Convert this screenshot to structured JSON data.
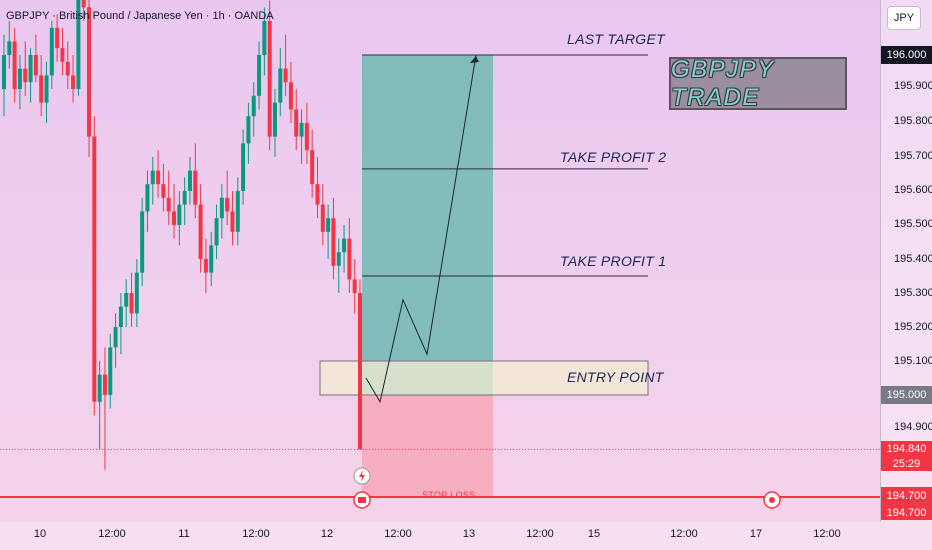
{
  "header": {
    "title": "GBPJPY · British Pound / Japanese Yen · 1h · OANDA"
  },
  "price_axis": {
    "currency": "JPY",
    "ticks": [
      "195.900",
      "195.800",
      "195.700",
      "195.600",
      "195.500",
      "195.400",
      "195.300",
      "195.200",
      "195.100",
      "194.900"
    ],
    "tags": {
      "last_target": "196.000",
      "entry": "195.000",
      "current": "194.840",
      "countdown": "25:29",
      "stop_loss": "194.700",
      "stop_loss_2": "194.700"
    }
  },
  "time_axis": {
    "labels": [
      "10",
      "12:00",
      "11",
      "12:00",
      "12",
      "12:00",
      "13",
      "12:00",
      "15",
      "12:00",
      "17",
      "12:00"
    ]
  },
  "annotations": {
    "last_target": "LAST TARGET",
    "take_profit_2": "TAKE PROFIT 2",
    "take_profit_1": "TAKE PROFIT 1",
    "entry_point": "ENTRY POINT",
    "stop_loss": "STOP LOSS",
    "trade_box": "GBPJPY TRADE"
  },
  "colors": {
    "bull": "#089981",
    "bear": "#f23645",
    "target_zone": "#6fb9b3",
    "stop_zone": "#f7a8b8",
    "entry_zone": "#f3ecd2",
    "tag_dark": "#131722",
    "tag_grey": "#787b86"
  },
  "chart_data": {
    "type": "candlestick",
    "title": "GBPJPY · British Pound / Japanese Yen · 1h · OANDA",
    "ylim": [
      194.6,
      196.2
    ],
    "levels": {
      "last_target": 196.0,
      "take_profit_2": 195.665,
      "take_profit_1": 195.35,
      "entry_zone_top": 195.1,
      "entry": 195.0,
      "stop_loss": 194.7,
      "current": 194.84
    },
    "projected_path": [
      [
        1,
        195.05
      ],
      [
        2,
        194.98
      ],
      [
        3,
        195.28
      ],
      [
        4,
        195.12
      ],
      [
        5,
        196.0
      ]
    ],
    "candles": [
      [
        195.9,
        196.06,
        195.82,
        196.0
      ],
      [
        196.0,
        196.1,
        195.96,
        196.04
      ],
      [
        196.04,
        196.08,
        195.86,
        195.9
      ],
      [
        195.9,
        196.0,
        195.84,
        195.96
      ],
      [
        195.96,
        196.04,
        195.88,
        195.92
      ],
      [
        195.92,
        196.02,
        195.86,
        196.0
      ],
      [
        196.0,
        196.06,
        195.92,
        195.94
      ],
      [
        195.94,
        196.0,
        195.82,
        195.86
      ],
      [
        195.86,
        195.98,
        195.8,
        195.94
      ],
      [
        195.94,
        196.1,
        195.9,
        196.08
      ],
      [
        196.08,
        196.12,
        195.98,
        196.02
      ],
      [
        196.02,
        196.08,
        195.94,
        195.98
      ],
      [
        195.98,
        196.04,
        195.9,
        195.94
      ],
      [
        195.94,
        196.0,
        195.86,
        195.9
      ],
      [
        195.9,
        196.2,
        195.88,
        196.18
      ],
      [
        196.18,
        196.24,
        196.1,
        196.14
      ],
      [
        196.14,
        196.2,
        195.7,
        195.76
      ],
      [
        195.76,
        195.82,
        194.94,
        194.98
      ],
      [
        194.98,
        195.1,
        194.84,
        195.06
      ],
      [
        195.06,
        195.14,
        194.78,
        195.0
      ],
      [
        195.0,
        195.18,
        194.96,
        195.14
      ],
      [
        195.14,
        195.24,
        195.08,
        195.2
      ],
      [
        195.2,
        195.3,
        195.12,
        195.26
      ],
      [
        195.26,
        195.34,
        195.2,
        195.3
      ],
      [
        195.3,
        195.36,
        195.2,
        195.24
      ],
      [
        195.24,
        195.4,
        195.2,
        195.36
      ],
      [
        195.36,
        195.58,
        195.32,
        195.54
      ],
      [
        195.54,
        195.66,
        195.48,
        195.62
      ],
      [
        195.62,
        195.7,
        195.56,
        195.66
      ],
      [
        195.66,
        195.72,
        195.58,
        195.62
      ],
      [
        195.62,
        195.68,
        195.54,
        195.58
      ],
      [
        195.58,
        195.66,
        195.5,
        195.54
      ],
      [
        195.54,
        195.62,
        195.46,
        195.5
      ],
      [
        195.5,
        195.6,
        195.44,
        195.56
      ],
      [
        195.56,
        195.64,
        195.5,
        195.6
      ],
      [
        195.6,
        195.7,
        195.56,
        195.66
      ],
      [
        195.66,
        195.74,
        195.52,
        195.56
      ],
      [
        195.56,
        195.62,
        195.36,
        195.4
      ],
      [
        195.4,
        195.46,
        195.3,
        195.36
      ],
      [
        195.36,
        195.48,
        195.32,
        195.44
      ],
      [
        195.44,
        195.56,
        195.4,
        195.52
      ],
      [
        195.52,
        195.62,
        195.46,
        195.58
      ],
      [
        195.58,
        195.66,
        195.5,
        195.54
      ],
      [
        195.54,
        195.6,
        195.44,
        195.48
      ],
      [
        195.48,
        195.64,
        195.44,
        195.6
      ],
      [
        195.6,
        195.78,
        195.56,
        195.74
      ],
      [
        195.74,
        195.86,
        195.68,
        195.82
      ],
      [
        195.82,
        195.92,
        195.76,
        195.88
      ],
      [
        195.88,
        196.04,
        195.84,
        196.0
      ],
      [
        196.0,
        196.14,
        195.94,
        196.1
      ],
      [
        196.1,
        196.16,
        195.72,
        195.76
      ],
      [
        195.76,
        195.9,
        195.7,
        195.86
      ],
      [
        195.86,
        196.02,
        195.82,
        195.96
      ],
      [
        195.96,
        196.06,
        195.88,
        195.92
      ],
      [
        195.92,
        195.98,
        195.8,
        195.84
      ],
      [
        195.84,
        195.9,
        195.72,
        195.76
      ],
      [
        195.76,
        195.84,
        195.68,
        195.8
      ],
      [
        195.8,
        195.86,
        195.68,
        195.72
      ],
      [
        195.72,
        195.78,
        195.58,
        195.62
      ],
      [
        195.62,
        195.7,
        195.52,
        195.56
      ],
      [
        195.56,
        195.62,
        195.44,
        195.48
      ],
      [
        195.48,
        195.56,
        195.4,
        195.52
      ],
      [
        195.52,
        195.58,
        195.34,
        195.38
      ],
      [
        195.38,
        195.46,
        195.3,
        195.42
      ],
      [
        195.42,
        195.5,
        195.36,
        195.46
      ],
      [
        195.46,
        195.52,
        195.3,
        195.34
      ],
      [
        195.34,
        195.4,
        195.24,
        195.3
      ],
      [
        195.3,
        195.34,
        194.84,
        194.84
      ]
    ]
  }
}
